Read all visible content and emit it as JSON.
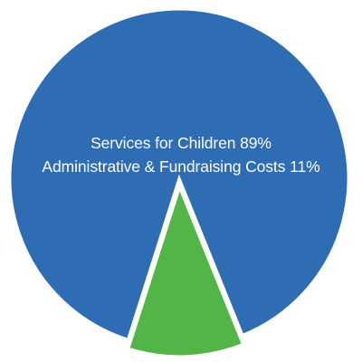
{
  "chart_data": {
    "type": "pie",
    "categories": [
      "Services for Children",
      "Administrative & Fundraising Costs"
    ],
    "values": [
      89,
      11
    ],
    "colors": [
      "#2e6db4",
      "#52b548"
    ],
    "exploded": [
      false,
      true
    ],
    "labels": [
      {
        "name": "Services for Children",
        "percent": "89%"
      },
      {
        "name": "Administrative & Fundraising Costs",
        "percent": "11%"
      }
    ],
    "legend": "none"
  }
}
